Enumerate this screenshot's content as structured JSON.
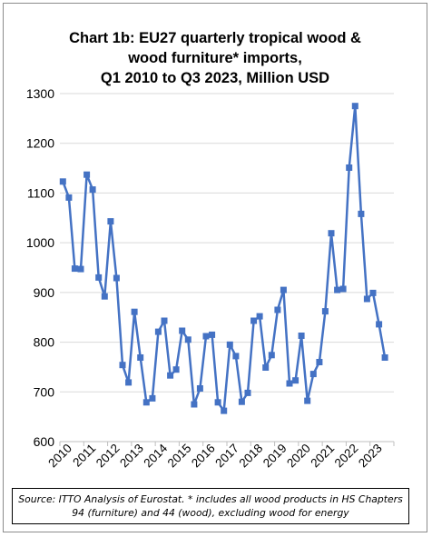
{
  "chart_data": {
    "type": "line",
    "title_lines": [
      "Chart 1b: EU27 quarterly tropical wood &",
      "wood furniture* imports,",
      "Q1 2010 to Q3 2023, Million USD"
    ],
    "x_tick_labels": [
      "2010",
      "2011",
      "2012",
      "2013",
      "2014",
      "2015",
      "2016",
      "2017",
      "2018",
      "2019",
      "2020",
      "2021",
      "2022",
      "2023"
    ],
    "ylim": [
      600,
      1300
    ],
    "y_ticks": [
      600,
      700,
      800,
      900,
      1000,
      1100,
      1200,
      1300
    ],
    "grid": true,
    "legend": "none",
    "series": [
      {
        "color": "#4472c4",
        "values": [
          1123,
          1091,
          948,
          947,
          1137,
          1107,
          930,
          892,
          1043,
          929,
          754,
          719,
          861,
          769,
          679,
          687,
          821,
          843,
          733,
          745,
          823,
          805,
          675,
          707,
          812,
          815,
          679,
          662,
          795,
          772,
          680,
          698,
          843,
          852,
          749,
          774,
          865,
          905,
          717,
          723,
          813,
          682,
          736,
          760,
          862,
          1019,
          905,
          907,
          1151,
          1275,
          1058,
          887,
          899,
          836,
          769
        ]
      }
    ]
  },
  "source_lines": [
    "Source: ITTO Analysis of Eurostat. * includes all wood products in HS Chapters",
    "94 (furniture) and 44 (wood), excluding wood for energy"
  ]
}
